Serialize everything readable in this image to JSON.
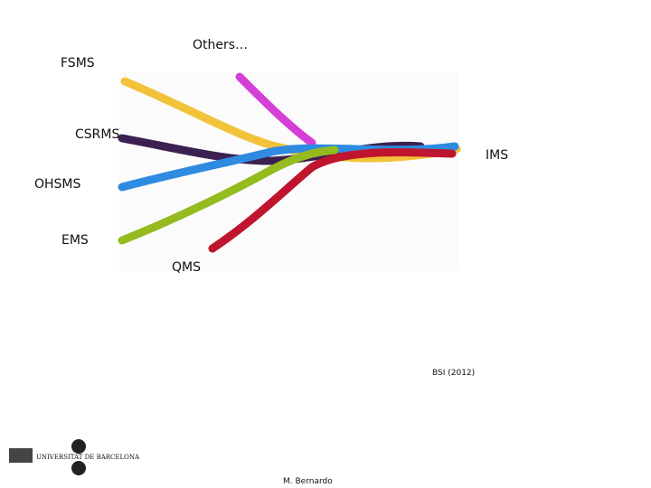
{
  "labels": {
    "fsms": "FSMS",
    "others": "Others…",
    "csrms": "CSRMS",
    "ims": "IMS",
    "ohsms": "OHSMS",
    "ems": "EMS",
    "qms": "QMS"
  },
  "source": "BSI (2012)",
  "footer": {
    "author": "M. Bernardo",
    "logo": "UNIVERSITAT DE BARCELONA"
  }
}
